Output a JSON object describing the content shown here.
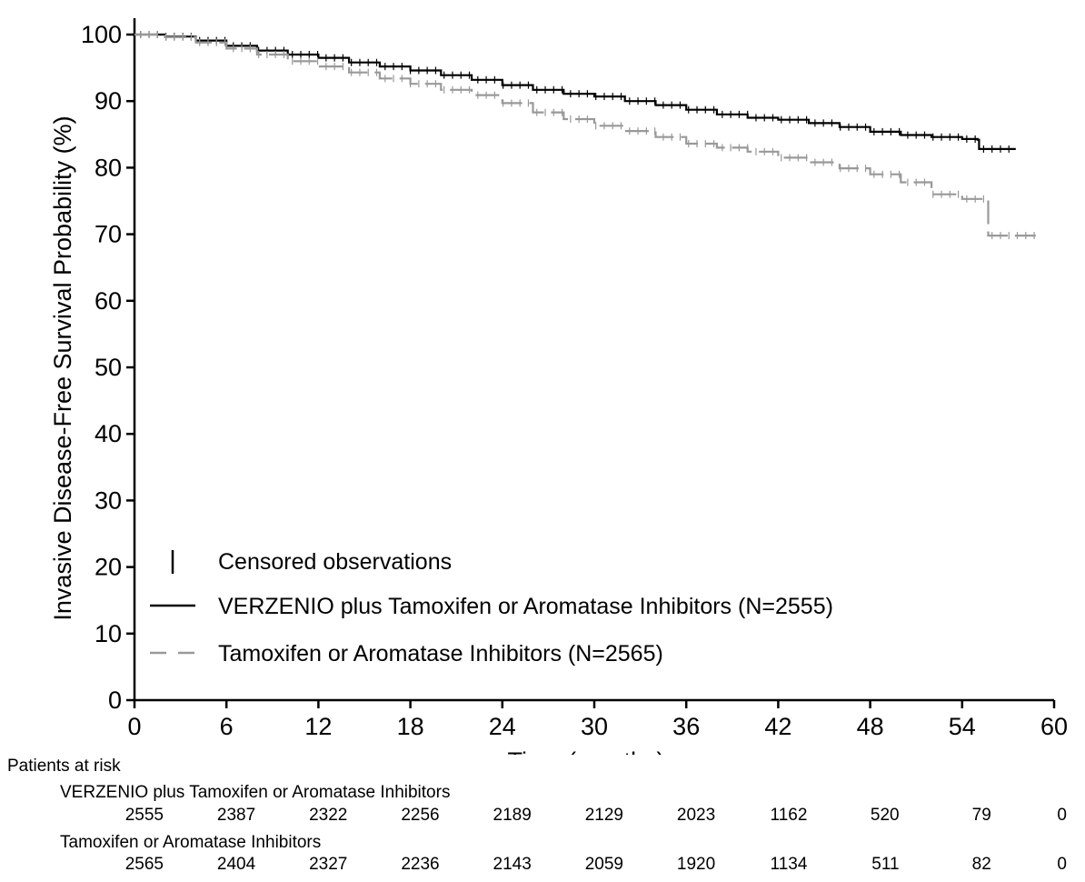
{
  "chart_data": {
    "type": "line",
    "title": "",
    "xlabel": "Time (months)",
    "ylabel": "Invasive Disease-Free Survival Probability (%)",
    "xlim": [
      0,
      60
    ],
    "ylim": [
      0,
      100
    ],
    "x_ticks": [
      "0",
      "6",
      "12",
      "18",
      "24",
      "30",
      "36",
      "42",
      "48",
      "54",
      "60"
    ],
    "y_ticks": [
      "0",
      "10",
      "20",
      "30",
      "40",
      "50",
      "60",
      "70",
      "80",
      "90",
      "100"
    ],
    "grid": false,
    "legend_position": "bottom-left",
    "legend": {
      "censored_label": "Censored observations"
    },
    "series": [
      {
        "name": "VERZENIO plus Tamoxifen or Aromatase Inhibitors (N=2555)",
        "color": "#000000",
        "style": "solid",
        "x": [
          0,
          2,
          4,
          6,
          8,
          10,
          12,
          14,
          16,
          18,
          20,
          22,
          24,
          26,
          28,
          30,
          32,
          34,
          36,
          38,
          40,
          42,
          44,
          46,
          48,
          50,
          52,
          54,
          55,
          55.1,
          57.5
        ],
        "y": [
          100,
          99.7,
          99.1,
          98.3,
          97.6,
          97.0,
          96.5,
          95.8,
          95.2,
          94.6,
          93.9,
          93.2,
          92.4,
          91.7,
          91.1,
          90.7,
          90.0,
          89.4,
          88.7,
          88.0,
          87.5,
          87.2,
          86.7,
          86.1,
          85.4,
          84.9,
          84.6,
          84.3,
          84.2,
          82.8,
          82.8
        ]
      },
      {
        "name": "Tamoxifen or Aromatase Inhibitors (N=2565)",
        "color": "#999999",
        "style": "dashed",
        "x": [
          0,
          2,
          4,
          6,
          8,
          10,
          12,
          14,
          16,
          18,
          20,
          22,
          24,
          26,
          28,
          30,
          32,
          34,
          36,
          38,
          40,
          42,
          44,
          46,
          48,
          50,
          52,
          54,
          55.6,
          55.7,
          58.8
        ],
        "y": [
          100,
          99.6,
          98.8,
          97.9,
          97.0,
          96.0,
          95.2,
          94.3,
          93.4,
          92.6,
          91.7,
          90.9,
          89.7,
          88.3,
          87.3,
          86.3,
          85.5,
          84.6,
          83.6,
          83.0,
          82.4,
          81.5,
          80.8,
          79.9,
          79.0,
          77.8,
          76.0,
          75.3,
          75.2,
          69.8,
          69.8
        ]
      }
    ],
    "patients_at_risk": {
      "header": "Patients at risk",
      "months": [
        0,
        6,
        12,
        18,
        24,
        30,
        36,
        42,
        48,
        54,
        60
      ],
      "groups": [
        {
          "label": "VERZENIO plus Tamoxifen or Aromatase Inhibitors",
          "counts": [
            "2555",
            "2387",
            "2322",
            "2256",
            "2189",
            "2129",
            "2023",
            "1162",
            "520",
            "79",
            "0"
          ]
        },
        {
          "label": "Tamoxifen or Aromatase Inhibitors",
          "counts": [
            "2565",
            "2404",
            "2327",
            "2236",
            "2143",
            "2059",
            "1920",
            "1134",
            "511",
            "82",
            "0"
          ]
        }
      ]
    }
  }
}
